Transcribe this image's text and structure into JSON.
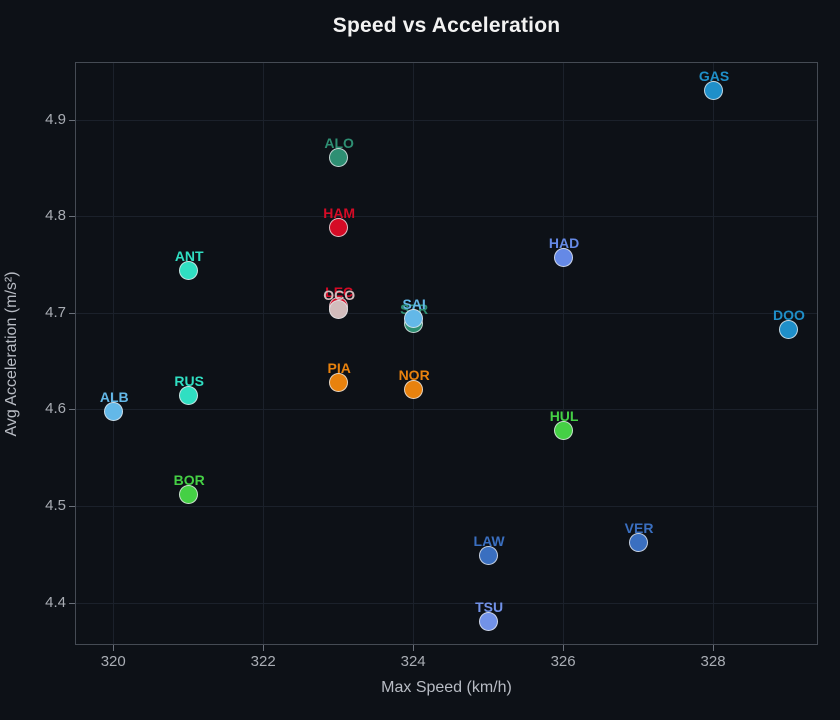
{
  "chart_data": {
    "type": "scatter",
    "title": "Speed vs Acceleration",
    "xlabel": "Max Speed (km/h)",
    "ylabel": "Avg Acceleration (m/s²)",
    "xlim": [
      319.49,
      329.4
    ],
    "ylim": [
      4.356,
      4.96
    ],
    "x_ticks": [
      "320",
      "322",
      "324",
      "326",
      "328"
    ],
    "x_tick_values": [
      320,
      322,
      324,
      326,
      328
    ],
    "y_ticks": [
      "4.9",
      "4.8",
      "4.7",
      "4.6",
      "4.5",
      "4.4"
    ],
    "y_tick_values": [
      4.9,
      4.8,
      4.7,
      4.6,
      4.5,
      4.4
    ],
    "grid": true,
    "legend": "none",
    "background_color": "#0d1117",
    "marker_edge_color": "#e6e8eb",
    "points": [
      {
        "label": "LEC",
        "x": 323.0,
        "y": 4.707,
        "color": "#d50b26"
      },
      {
        "label": "STR",
        "x": 324.0,
        "y": 4.69,
        "color": "#2e8f73"
      },
      {
        "label": "GAS",
        "x": 328.0,
        "y": 4.931,
        "color": "#1f8fc9"
      },
      {
        "label": "ALO",
        "x": 323.0,
        "y": 4.862,
        "color": "#2e8f73"
      },
      {
        "label": "HAM",
        "x": 323.0,
        "y": 4.789,
        "color": "#d50b26"
      },
      {
        "label": "HAD",
        "x": 326.0,
        "y": 4.758,
        "color": "#6589e6"
      },
      {
        "label": "ANT",
        "x": 321.0,
        "y": 4.744,
        "color": "#30dfc2"
      },
      {
        "label": "OCO",
        "x": 323.0,
        "y": 4.704,
        "color": "#d2bcbc"
      },
      {
        "label": "SAI",
        "x": 324.0,
        "y": 4.695,
        "color": "#63b8e8"
      },
      {
        "label": "DOO",
        "x": 329.0,
        "y": 4.683,
        "color": "#1f8fc9"
      },
      {
        "label": "PIA",
        "x": 323.0,
        "y": 4.628,
        "color": "#e8820e"
      },
      {
        "label": "NOR",
        "x": 324.0,
        "y": 4.621,
        "color": "#e8820e"
      },
      {
        "label": "RUS",
        "x": 321.0,
        "y": 4.615,
        "color": "#30dfc2"
      },
      {
        "label": "ALB",
        "x": 320.0,
        "y": 4.598,
        "color": "#63b8e8"
      },
      {
        "label": "HUL",
        "x": 326.0,
        "y": 4.579,
        "color": "#45d045"
      },
      {
        "label": "BOR",
        "x": 321.0,
        "y": 4.512,
        "color": "#45d045"
      },
      {
        "label": "VER",
        "x": 327.0,
        "y": 4.463,
        "color": "#3a6fc0"
      },
      {
        "label": "LAW",
        "x": 325.0,
        "y": 4.449,
        "color": "#3a6fc0"
      },
      {
        "label": "TSU",
        "x": 325.0,
        "y": 4.381,
        "color": "#7292e8"
      }
    ]
  }
}
